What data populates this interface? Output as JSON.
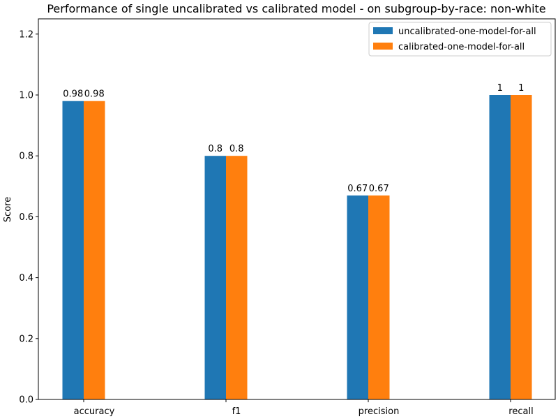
{
  "chart_data": {
    "type": "bar",
    "title": "Performance of single uncalibrated vs calibrated model - on subgroup-by-race: non-white",
    "xlabel": "",
    "ylabel": "Score",
    "ylim": [
      0,
      1.25
    ],
    "yticks": [
      0.0,
      0.2,
      0.4,
      0.6,
      0.8,
      1.0,
      1.2
    ],
    "ytick_labels": [
      "0.0",
      "0.2",
      "0.4",
      "0.6",
      "0.8",
      "1.0",
      "1.2"
    ],
    "categories": [
      "accuracy",
      "f1",
      "precision",
      "recall"
    ],
    "series": [
      {
        "name": "uncalibrated-one-model-for-all",
        "color": "#1f77b4",
        "values": [
          0.98,
          0.8,
          0.67,
          1
        ],
        "value_labels": [
          "0.98",
          "0.8",
          "0.67",
          "1"
        ]
      },
      {
        "name": "calibrated-one-model-for-all",
        "color": "#ff7f0e",
        "values": [
          0.98,
          0.8,
          0.67,
          1
        ],
        "value_labels": [
          "0.98",
          "0.8",
          "0.67",
          "1"
        ]
      }
    ],
    "legend_position": "upper right",
    "grid": false
  }
}
